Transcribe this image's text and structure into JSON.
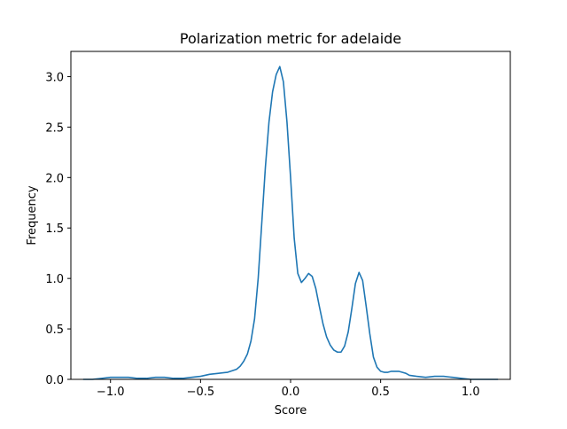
{
  "chart_data": {
    "type": "line",
    "title": "Polarization metric for adelaide",
    "xlabel": "Score",
    "ylabel": "Frequency",
    "xlim": [
      -1.22,
      1.22
    ],
    "ylim": [
      0.0,
      3.25
    ],
    "grid": false,
    "legend": "none",
    "xticks": [
      -1.0,
      -0.5,
      0.0,
      0.5,
      1.0
    ],
    "xtick_labels": [
      "−1.0",
      "−0.5",
      "0.0",
      "0.5",
      "1.0"
    ],
    "yticks": [
      0.0,
      0.5,
      1.0,
      1.5,
      2.0,
      2.5,
      3.0
    ],
    "ytick_labels": [
      "0.0",
      "0.5",
      "1.0",
      "1.5",
      "2.0",
      "2.5",
      "3.0"
    ],
    "series": [
      {
        "color": "#1f77b4",
        "x": [
          -1.15,
          -1.1,
          -1.05,
          -1.0,
          -0.95,
          -0.9,
          -0.85,
          -0.8,
          -0.75,
          -0.7,
          -0.65,
          -0.6,
          -0.55,
          -0.5,
          -0.45,
          -0.4,
          -0.35,
          -0.3,
          -0.28,
          -0.26,
          -0.24,
          -0.22,
          -0.2,
          -0.18,
          -0.16,
          -0.14,
          -0.12,
          -0.1,
          -0.08,
          -0.06,
          -0.04,
          -0.02,
          0.0,
          0.02,
          0.04,
          0.06,
          0.08,
          0.1,
          0.12,
          0.14,
          0.16,
          0.18,
          0.2,
          0.22,
          0.24,
          0.26,
          0.28,
          0.3,
          0.32,
          0.34,
          0.36,
          0.38,
          0.4,
          0.42,
          0.44,
          0.46,
          0.48,
          0.5,
          0.52,
          0.54,
          0.56,
          0.58,
          0.6,
          0.62,
          0.64,
          0.66,
          0.7,
          0.75,
          0.8,
          0.85,
          0.9,
          0.95,
          1.0,
          1.03,
          1.06,
          1.1,
          1.15
        ],
        "y": [
          0.0,
          0.0,
          0.01,
          0.02,
          0.02,
          0.02,
          0.01,
          0.01,
          0.02,
          0.02,
          0.01,
          0.01,
          0.02,
          0.03,
          0.05,
          0.06,
          0.07,
          0.1,
          0.13,
          0.18,
          0.25,
          0.38,
          0.6,
          1.0,
          1.55,
          2.1,
          2.55,
          2.85,
          3.02,
          3.1,
          2.95,
          2.55,
          2.0,
          1.4,
          1.05,
          0.96,
          1.0,
          1.05,
          1.02,
          0.9,
          0.72,
          0.55,
          0.42,
          0.34,
          0.29,
          0.27,
          0.27,
          0.33,
          0.47,
          0.7,
          0.95,
          1.06,
          0.98,
          0.72,
          0.45,
          0.22,
          0.12,
          0.08,
          0.07,
          0.07,
          0.08,
          0.08,
          0.08,
          0.07,
          0.06,
          0.04,
          0.03,
          0.02,
          0.03,
          0.03,
          0.02,
          0.01,
          0.0,
          0.0,
          0.0,
          0.0,
          0.0
        ]
      }
    ]
  }
}
